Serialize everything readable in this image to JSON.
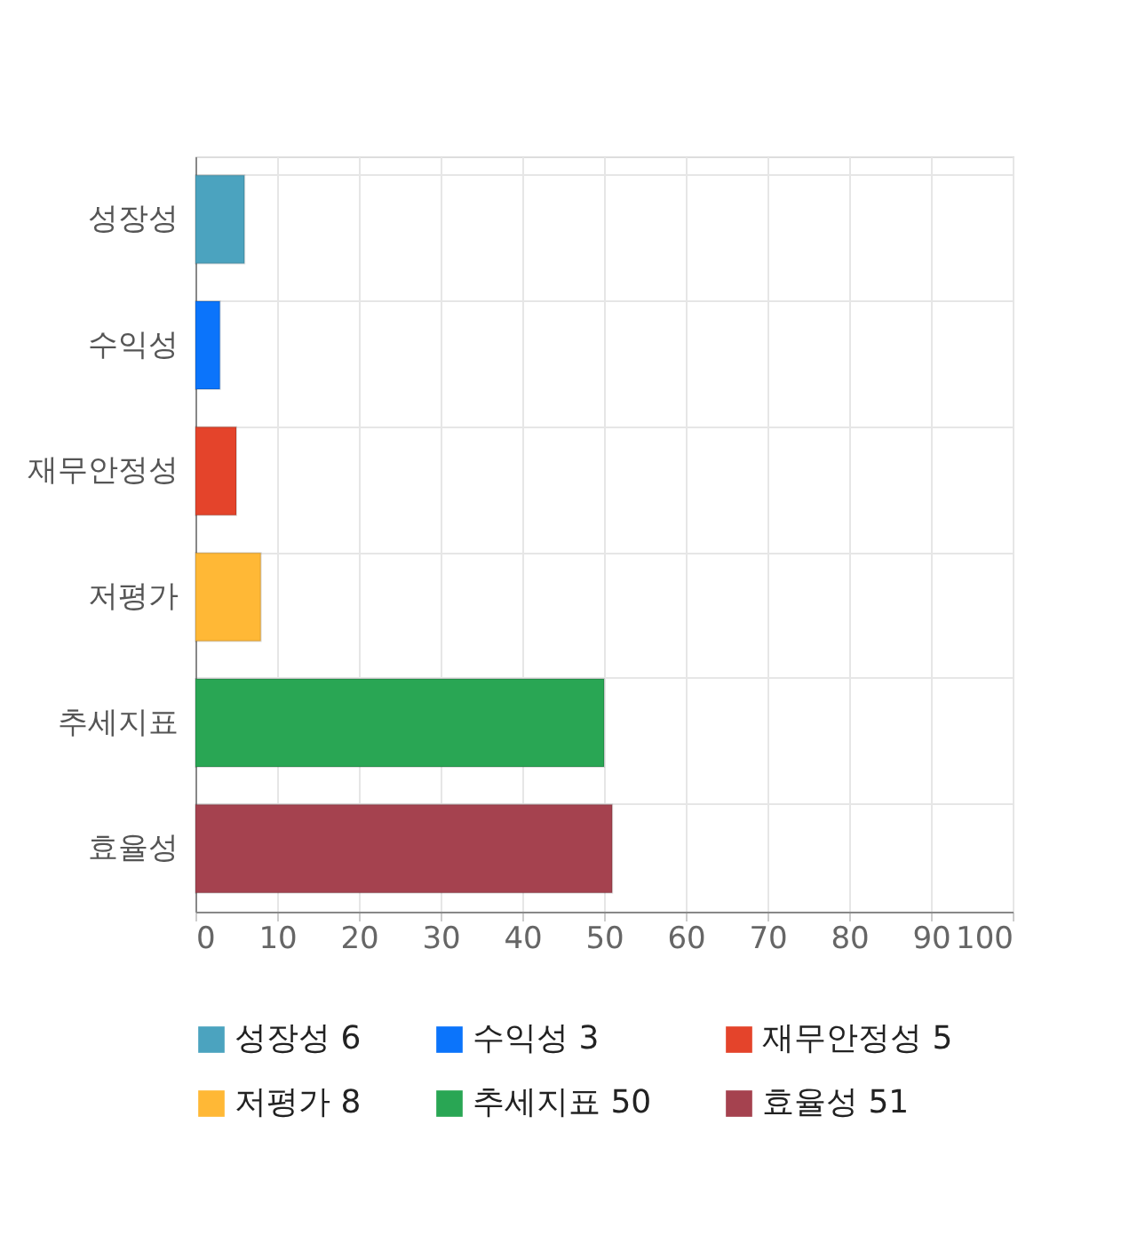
{
  "chart_data": {
    "type": "bar",
    "orientation": "horizontal",
    "categories": [
      "성장성",
      "수익성",
      "재무안정성",
      "저평가",
      "추세지표",
      "효율성"
    ],
    "series": [
      {
        "name": "성장성 6",
        "color": "#4ba3bf",
        "values": [
          6,
          null,
          null,
          null,
          null,
          null
        ]
      },
      {
        "name": "수익성 3",
        "color": "#0b74fb",
        "values": [
          null,
          3,
          null,
          null,
          null,
          null
        ]
      },
      {
        "name": "재무안정성 5",
        "color": "#e4442b",
        "values": [
          null,
          null,
          5,
          null,
          null,
          null
        ]
      },
      {
        "name": "저평가 8",
        "color": "#ffb836",
        "values": [
          null,
          null,
          null,
          8,
          null,
          null
        ]
      },
      {
        "name": "추세지표 50",
        "color": "#29a654",
        "values": [
          null,
          null,
          null,
          null,
          50,
          null
        ]
      },
      {
        "name": "효율성 51",
        "color": "#a5424f",
        "values": [
          null,
          null,
          null,
          null,
          null,
          51
        ]
      }
    ],
    "xlim": [
      0,
      100
    ],
    "xticks": [
      0,
      10,
      20,
      30,
      40,
      50,
      60,
      70,
      80,
      90,
      100
    ],
    "grid": true,
    "legend": "bottom"
  }
}
